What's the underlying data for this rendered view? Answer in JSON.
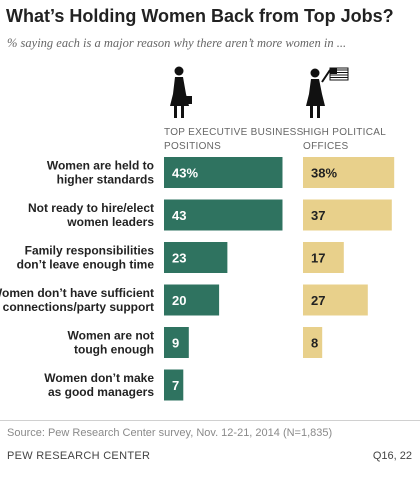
{
  "header": {
    "title": "What’s Holding Women Back from Top Jobs?",
    "subtitle": "% saying each is a major reason why there aren’t more women in ..."
  },
  "footer": {
    "source": "Source: Pew Research Center survey, Nov. 12-21, 2014 (N=1,835)",
    "org": "PEW RESEARCH CENTER",
    "question_code": "Q16, 22"
  },
  "colors": {
    "business": "#2f7360",
    "political": "#e8d08b"
  },
  "icons": {
    "business": "businesswoman-icon",
    "political": "woman-with-flag-icon"
  },
  "chart_data": {
    "type": "bar",
    "orientation": "horizontal",
    "categories": [
      "Women are held to higher standards",
      "Not ready to hire/elect women leaders",
      "Family responsibilities don’t leave enough time",
      "Women don’t have sufficient connections/party support",
      "Women are not tough enough",
      "Women don’t make as good managers"
    ],
    "category_lines": [
      [
        "Women are held to",
        "higher standards"
      ],
      [
        "Not ready to hire/elect",
        "women leaders"
      ],
      [
        "Family responsibilities",
        "don’t leave enough time"
      ],
      [
        "Women don’t have sufficient",
        "connections/party support"
      ],
      [
        "Women are not",
        "tough enough"
      ],
      [
        "Women don’t make",
        "as good managers"
      ]
    ],
    "series": [
      {
        "name": "TOP EXECUTIVE BUSINESS POSITIONS",
        "values": [
          43,
          43,
          23,
          20,
          9,
          7
        ],
        "labels": [
          "43%",
          "43",
          "23",
          "20",
          "9",
          "7"
        ]
      },
      {
        "name": "HIGH POLITICAL OFFICES",
        "values": [
          38,
          37,
          17,
          27,
          8,
          null
        ],
        "labels": [
          "38%",
          "37",
          "17",
          "27",
          "8",
          ""
        ]
      }
    ],
    "xlim": [
      0,
      45
    ],
    "grid": false,
    "legend": "column-headers"
  }
}
